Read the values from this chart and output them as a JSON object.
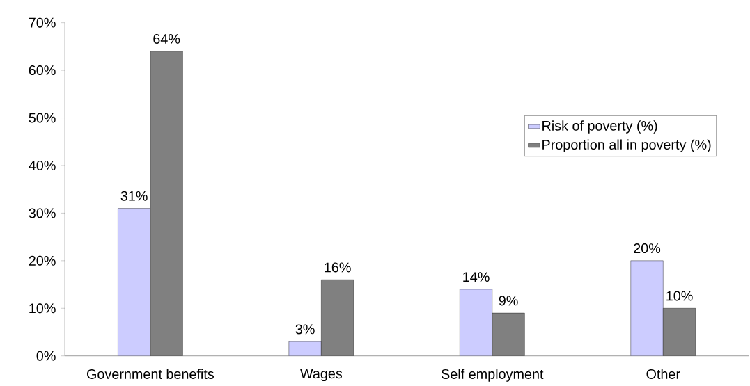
{
  "chart_data": {
    "type": "bar",
    "categories": [
      "Government benefits",
      "Wages",
      "Self employment",
      "Other"
    ],
    "series": [
      {
        "name": "Risk of poverty (%)",
        "color": "#ccccff",
        "values": [
          31,
          3,
          14,
          20
        ],
        "value_labels": [
          "31%",
          "3%",
          "14%",
          "20%"
        ]
      },
      {
        "name": "Proportion all in poverty (%)",
        "color": "#808080",
        "values": [
          64,
          16,
          9,
          10
        ],
        "value_labels": [
          "64%",
          "16%",
          "9%",
          "10%"
        ]
      }
    ],
    "ylim": [
      0,
      70
    ],
    "yticks": [
      {
        "value": 0,
        "label": "0%"
      },
      {
        "value": 10,
        "label": "10%"
      },
      {
        "value": 20,
        "label": "20%"
      },
      {
        "value": 30,
        "label": "30%"
      },
      {
        "value": 40,
        "label": "40%"
      },
      {
        "value": 50,
        "label": "50%"
      },
      {
        "value": 60,
        "label": "60%"
      },
      {
        "value": 70,
        "label": "70%"
      }
    ],
    "legend": "right"
  }
}
